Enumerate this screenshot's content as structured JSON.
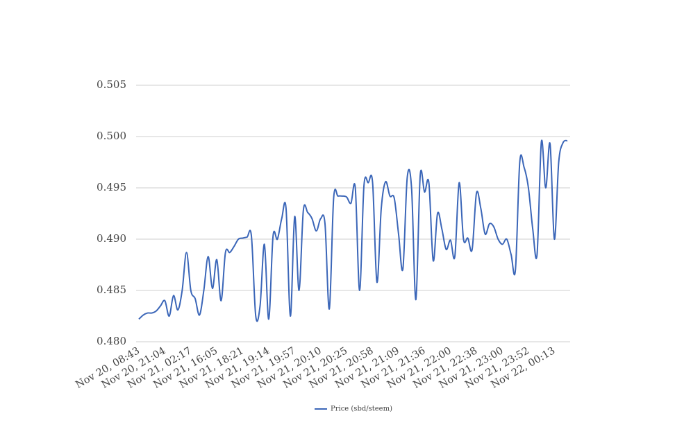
{
  "chart_data": {
    "type": "line",
    "categories": [
      "Nov 20, 08:43",
      null,
      null,
      null,
      null,
      null,
      "Nov 20, 21:04",
      null,
      null,
      null,
      null,
      null,
      "Nov 21, 02:17",
      null,
      null,
      null,
      null,
      null,
      "Nov 21, 16:05",
      null,
      null,
      null,
      null,
      null,
      "Nov 21, 18:21",
      null,
      null,
      null,
      null,
      null,
      "Nov 21, 19:14",
      null,
      null,
      null,
      null,
      null,
      "Nov 21, 19:57",
      null,
      null,
      null,
      null,
      null,
      "Nov 21, 20:10",
      null,
      null,
      null,
      null,
      null,
      "Nov 21, 20:25",
      null,
      null,
      null,
      null,
      null,
      "Nov 21, 20:58",
      null,
      null,
      null,
      null,
      null,
      "Nov 21, 21:09",
      null,
      null,
      null,
      null,
      null,
      "Nov 21, 21:36",
      null,
      null,
      null,
      null,
      null,
      "Nov 21, 22:00",
      null,
      null,
      null,
      null,
      null,
      "Nov 21, 22:38",
      null,
      null,
      null,
      null,
      null,
      "Nov 21, 23:00",
      null,
      null,
      null,
      null,
      null,
      "Nov 21, 23:52",
      null,
      null,
      null,
      null,
      null,
      "Nov 22, 00:13",
      null,
      null,
      null
    ],
    "series": [
      {
        "name": "Price (sbd/steem)",
        "color": "#3b66b8",
        "values": [
          0.4822,
          0.4826,
          0.4828,
          0.4828,
          0.483,
          0.4835,
          0.484,
          0.4825,
          0.4845,
          0.4831,
          0.485,
          0.4887,
          0.485,
          0.4842,
          0.4826,
          0.485,
          0.4883,
          0.4852,
          0.488,
          0.484,
          0.4887,
          0.4887,
          0.4893,
          0.49,
          0.4901,
          0.4902,
          0.4903,
          0.4825,
          0.4835,
          0.4895,
          0.4822,
          0.4903,
          0.49,
          0.492,
          0.493,
          0.4825,
          0.4922,
          0.485,
          0.4928,
          0.4926,
          0.492,
          0.4908,
          0.492,
          0.4915,
          0.4832,
          0.494,
          0.4942,
          0.4942,
          0.4941,
          0.4935,
          0.495,
          0.485,
          0.4952,
          0.4955,
          0.4955,
          0.4858,
          0.493,
          0.4956,
          0.4942,
          0.494,
          0.4905,
          0.4871,
          0.496,
          0.495,
          0.4841,
          0.4962,
          0.4946,
          0.4955,
          0.4879,
          0.4925,
          0.491,
          0.489,
          0.4899,
          0.4883,
          0.4955,
          0.49,
          0.4901,
          0.489,
          0.4945,
          0.493,
          0.4905,
          0.4915,
          0.4912,
          0.49,
          0.4895,
          0.49,
          0.4885,
          0.487,
          0.4975,
          0.497,
          0.495,
          0.491,
          0.4885,
          0.4995,
          0.495,
          0.4993,
          0.49,
          0.4975,
          0.4994,
          0.4996
        ]
      }
    ],
    "ylim": [
      0.48,
      0.505
    ],
    "yticks": [
      {
        "value": 0.48,
        "label": "0.480"
      },
      0.485,
      {
        "value": 0.49,
        "label": "0.490"
      },
      0.495,
      {
        "value": 0.5,
        "label": "0.500"
      },
      0.505
    ],
    "grid": true,
    "legend": "bottom"
  }
}
